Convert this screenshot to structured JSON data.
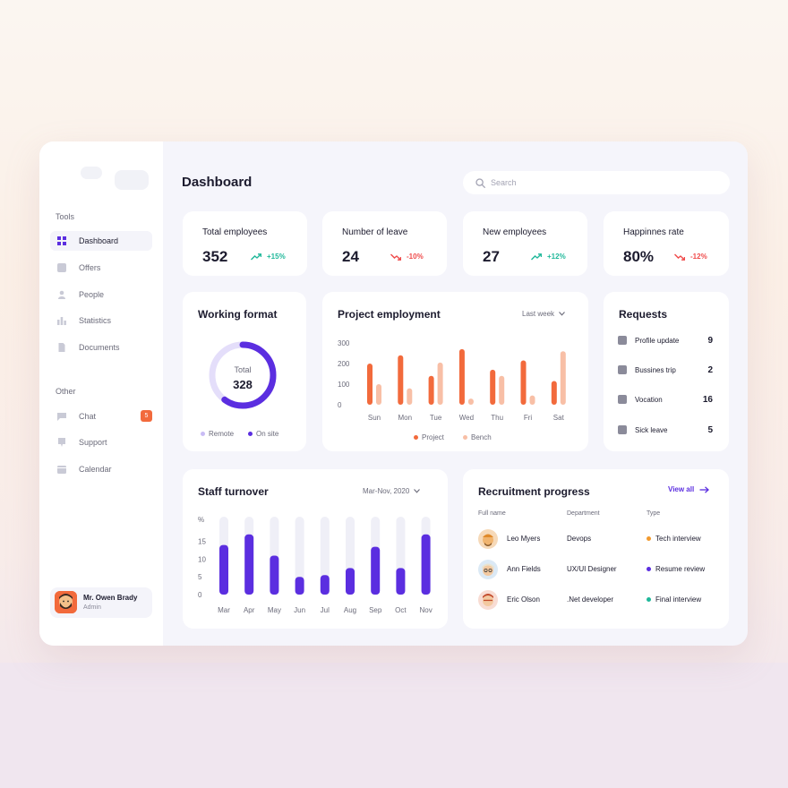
{
  "sidebar": {
    "tools_title": "Tools",
    "tools": [
      {
        "label": "Dashboard",
        "icon": "dashboard-icon",
        "active": true
      },
      {
        "label": "Offers",
        "icon": "offers-icon"
      },
      {
        "label": "People",
        "icon": "people-icon"
      },
      {
        "label": "Statistics",
        "icon": "statistics-icon"
      },
      {
        "label": "Documents",
        "icon": "documents-icon"
      }
    ],
    "other_title": "Other",
    "other": [
      {
        "label": "Chat",
        "icon": "chat-icon",
        "badge": "5"
      },
      {
        "label": "Support",
        "icon": "support-icon"
      },
      {
        "label": "Calendar",
        "icon": "calendar-icon"
      }
    ],
    "user": {
      "name": "Mr. Owen Brady",
      "role": "Admin"
    }
  },
  "header": {
    "title": "Dashboard",
    "search_placeholder": "Search"
  },
  "stats": [
    {
      "title": "Total employees",
      "value": "352",
      "change": "+15%",
      "trend": "up"
    },
    {
      "title": "Number of leave",
      "value": "24",
      "change": "-10%",
      "trend": "down"
    },
    {
      "title": "New employees",
      "value": "27",
      "change": "+12%",
      "trend": "up"
    },
    {
      "title": "Happinnes rate",
      "value": "80%",
      "change": "-12%",
      "trend": "down"
    }
  ],
  "working_format": {
    "title": "Working format",
    "total_label": "Total",
    "total_value": "328",
    "legend": [
      "Remote",
      "On site"
    ]
  },
  "project_employment": {
    "title": "Project employment",
    "filter": "Last week"
  },
  "requests": {
    "title": "Requests",
    "items": [
      {
        "label": "Profile update",
        "count": "9",
        "icon": "profile-icon"
      },
      {
        "label": "Bussines trip",
        "count": "2",
        "icon": "briefcase-icon"
      },
      {
        "label": "Vocation",
        "count": "16",
        "icon": "luggage-icon"
      },
      {
        "label": "Sick leave",
        "count": "5",
        "icon": "home-icon"
      }
    ]
  },
  "staff_turnover": {
    "title": "Staff turnover",
    "filter": "Mar-Nov, 2020"
  },
  "recruitment": {
    "title": "Recruitment progress",
    "view_all": "View all",
    "headers": [
      "Full name",
      "Department",
      "Type"
    ],
    "rows": [
      {
        "name": "Leo Myers",
        "department": "Devops",
        "type": "Tech interview",
        "type_color": "#f29a2e"
      },
      {
        "name": "Ann Fields",
        "department": "UX/UI Designer",
        "type": "Resume review",
        "type_color": "#5b2ee0"
      },
      {
        "name": "Eric Olson",
        "department": ".Net developer",
        "type": "Final interview",
        "type_color": "#1fb89a"
      }
    ]
  },
  "colors": {
    "accent": "#5b2ee0",
    "orange": "#f26a3c",
    "peach": "#f8bfa6",
    "up": "#1fb89a",
    "down": "#ef4a4a"
  },
  "chart_data": [
    {
      "type": "pie",
      "title": "Working format",
      "categories": [
        "Remote",
        "On site"
      ],
      "values": [
        131,
        197
      ],
      "total": 328
    },
    {
      "type": "bar",
      "title": "Project employment",
      "categories": [
        "Sun",
        "Mon",
        "Tue",
        "Wed",
        "Thu",
        "Fri",
        "Sat"
      ],
      "series": [
        {
          "name": "Project",
          "values": [
            200,
            240,
            140,
            270,
            170,
            215,
            115
          ]
        },
        {
          "name": "Bench",
          "values": [
            100,
            80,
            205,
            30,
            140,
            45,
            260
          ]
        }
      ],
      "yticks": [
        0,
        100,
        200,
        300
      ],
      "ylim": [
        0,
        300
      ]
    },
    {
      "type": "bar",
      "title": "Staff turnover",
      "ylabel": "%",
      "categories": [
        "Mar",
        "Apr",
        "May",
        "Jun",
        "Jul",
        "Aug",
        "Sep",
        "Oct",
        "Nov"
      ],
      "values": [
        14,
        17,
        11,
        5,
        5.5,
        7.5,
        13.5,
        7.5,
        17
      ],
      "yticks": [
        0,
        5,
        10,
        15
      ],
      "ylim": [
        0,
        22
      ]
    }
  ]
}
